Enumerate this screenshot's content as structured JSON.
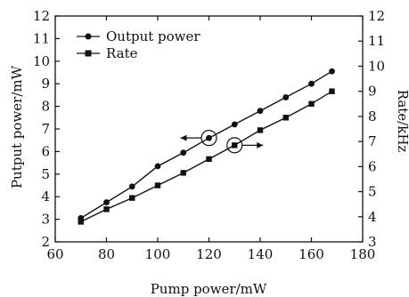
{
  "chart_data": {
    "type": "line",
    "xlabel": "Pump power/mW",
    "ylabel_left": "Putput power/mW",
    "ylabel_right": "Rate/kHz",
    "xlim": [
      60,
      180
    ],
    "ylim_left": [
      2,
      12
    ],
    "ylim_right": [
      3,
      12
    ],
    "x_ticks": [
      "60",
      "80",
      "100",
      "120",
      "140",
      "160",
      "180"
    ],
    "y_left_ticks": [
      "2",
      "3",
      "4",
      "5",
      "6",
      "7",
      "8",
      "9",
      "10",
      "11",
      "12"
    ],
    "y_right_ticks": [
      "3",
      "4",
      "5",
      "6",
      "7",
      "8",
      "9",
      "10",
      "11",
      "12"
    ],
    "grid": false,
    "legend_position": "top-left",
    "series": [
      {
        "name": "Output power",
        "axis": "left",
        "marker": "circle",
        "x": [
          70,
          80,
          90,
          100,
          110,
          120,
          130,
          140,
          150,
          160,
          168
        ],
        "values": [
          3.05,
          3.75,
          4.45,
          5.35,
          5.95,
          6.6,
          7.2,
          7.8,
          8.4,
          9.0,
          9.55
        ]
      },
      {
        "name": "Rate",
        "axis": "right",
        "marker": "square",
        "x": [
          70,
          80,
          90,
          100,
          110,
          120,
          130,
          140,
          150,
          160,
          168
        ],
        "values": [
          3.8,
          4.3,
          4.75,
          5.25,
          5.75,
          6.3,
          6.85,
          7.45,
          7.95,
          8.5,
          9.0
        ]
      }
    ],
    "annotations": [
      {
        "series": "Output power",
        "circle_at": [
          120,
          6.6
        ],
        "arrow": "left"
      },
      {
        "series": "Rate",
        "circle_at": [
          130,
          6.85
        ],
        "arrow": "right"
      }
    ]
  }
}
